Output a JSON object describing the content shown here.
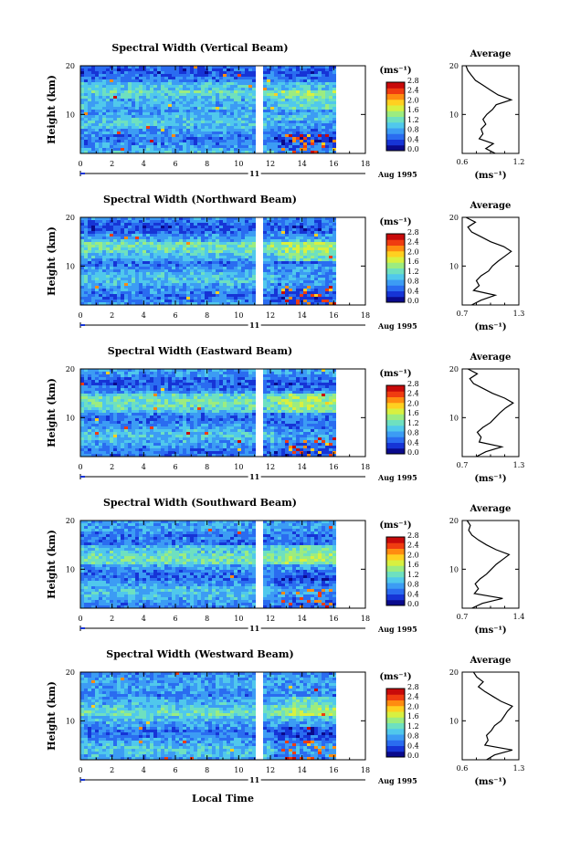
{
  "colors": {
    "colormap": [
      "#0a0a8c",
      "#1634d6",
      "#2a6cf0",
      "#3c9cf4",
      "#50c8ec",
      "#6ee0c0",
      "#9cec80",
      "#d8f040",
      "#ffd020",
      "#ff8c10",
      "#f03c10",
      "#c80a0a"
    ],
    "background": "#ffffff",
    "axis": "#000000",
    "gap": "#ffffff"
  },
  "footer": {
    "xlabel": "Local Time"
  },
  "chart_data": [
    {
      "type": "heatmap",
      "title": "Spectral Width (Vertical Beam)",
      "ylabel": "Height (km)",
      "ylim": [
        2,
        20
      ],
      "yticks": [
        "10",
        "20"
      ],
      "xlim": [
        0,
        18
      ],
      "xticks": [
        "0",
        "2",
        "4",
        "6",
        "8",
        "10",
        "12",
        "14",
        "16",
        "18"
      ],
      "date_label": "11",
      "date_suffix": "Aug 1995",
      "gap_hours": [
        11.1,
        11.5
      ],
      "data_end_hour": 16,
      "colorbar": {
        "unit": "(ms⁻¹)",
        "ticks": [
          "0.0",
          "0.4",
          "0.8",
          "1.2",
          "1.6",
          "2.0",
          "2.4",
          "2.8"
        ]
      },
      "profile": {
        "title": "Average",
        "xlabel": "(ms⁻¹)",
        "xlim": [
          0.6,
          1.2
        ],
        "xticks": [
          "0.6",
          "1.2"
        ],
        "yticks": [
          "10",
          "20"
        ],
        "heights": [
          2,
          3,
          4,
          5,
          6,
          7,
          8,
          9,
          10,
          11,
          12,
          13,
          14,
          15,
          16,
          17,
          18,
          19,
          20
        ],
        "values": [
          0.95,
          0.85,
          0.93,
          0.78,
          0.82,
          0.8,
          0.85,
          0.82,
          0.86,
          0.92,
          0.96,
          1.12,
          0.98,
          0.9,
          0.82,
          0.74,
          0.7,
          0.66,
          0.64
        ]
      }
    },
    {
      "type": "heatmap",
      "title": "Spectral Width (Northward Beam)",
      "ylabel": "Height (km)",
      "ylim": [
        2,
        20
      ],
      "yticks": [
        "10",
        "20"
      ],
      "xlim": [
        0,
        18
      ],
      "xticks": [
        "0",
        "2",
        "4",
        "6",
        "8",
        "10",
        "12",
        "14",
        "16",
        "18"
      ],
      "date_label": "11",
      "date_suffix": "Aug 1995",
      "gap_hours": [
        11.1,
        11.5
      ],
      "data_end_hour": 16,
      "colorbar": {
        "unit": "(ms⁻¹)",
        "ticks": [
          "0.0",
          "0.4",
          "0.8",
          "1.2",
          "1.6",
          "2.0",
          "2.4",
          "2.8"
        ]
      },
      "profile": {
        "title": "Average",
        "xlabel": "(ms⁻¹)",
        "xlim": [
          0.7,
          1.3
        ],
        "xticks": [
          "0.7",
          "1.3"
        ],
        "yticks": [
          "10",
          "20"
        ],
        "heights": [
          2,
          3,
          4,
          5,
          6,
          7,
          8,
          9,
          10,
          11,
          12,
          13,
          14,
          15,
          16,
          17,
          18,
          19,
          20
        ],
        "values": [
          0.8,
          0.9,
          1.05,
          0.82,
          0.88,
          0.85,
          0.9,
          0.98,
          1.02,
          1.08,
          1.15,
          1.22,
          1.14,
          1.0,
          0.9,
          0.8,
          0.76,
          0.84,
          0.74
        ]
      }
    },
    {
      "type": "heatmap",
      "title": "Spectral Width (Eastward Beam)",
      "ylabel": "Height (km)",
      "ylim": [
        2,
        20
      ],
      "yticks": [
        "10",
        "20"
      ],
      "xlim": [
        0,
        18
      ],
      "xticks": [
        "0",
        "2",
        "4",
        "6",
        "8",
        "10",
        "12",
        "14",
        "16",
        "18"
      ],
      "date_label": "11",
      "date_suffix": "Aug 1995",
      "gap_hours": [
        11.1,
        11.5
      ],
      "data_end_hour": 16,
      "colorbar": {
        "unit": "(ms⁻¹)",
        "ticks": [
          "0.0",
          "0.4",
          "0.8",
          "1.2",
          "1.6",
          "2.0",
          "2.4",
          "2.8"
        ]
      },
      "profile": {
        "title": "Average",
        "xlabel": "(ms⁻¹)",
        "xlim": [
          0.7,
          1.3
        ],
        "xticks": [
          "0.7",
          "1.3"
        ],
        "yticks": [
          "10",
          "20"
        ],
        "heights": [
          2,
          3,
          4,
          5,
          6,
          7,
          8,
          9,
          10,
          11,
          12,
          13,
          14,
          15,
          16,
          17,
          18,
          19,
          20
        ],
        "values": [
          0.85,
          0.95,
          1.12,
          0.88,
          0.9,
          0.86,
          0.92,
          1.0,
          1.05,
          1.1,
          1.16,
          1.24,
          1.15,
          1.02,
          0.92,
          0.82,
          0.78,
          0.86,
          0.76
        ]
      }
    },
    {
      "type": "heatmap",
      "title": "Spectral Width (Southward Beam)",
      "ylabel": "Height (km)",
      "ylim": [
        2,
        20
      ],
      "yticks": [
        "10",
        "20"
      ],
      "xlim": [
        0,
        18
      ],
      "xticks": [
        "0",
        "2",
        "4",
        "6",
        "8",
        "10",
        "12",
        "14",
        "16",
        "18"
      ],
      "date_label": "11",
      "date_suffix": "Aug 1995",
      "gap_hours": [
        11.1,
        11.5
      ],
      "data_end_hour": 16,
      "colorbar": {
        "unit": "(ms⁻¹)",
        "ticks": [
          "0.0",
          "0.4",
          "0.8",
          "1.2",
          "1.6",
          "2.0",
          "2.4",
          "2.8"
        ]
      },
      "profile": {
        "title": "Average",
        "xlabel": "(ms⁻¹)",
        "xlim": [
          0.7,
          1.4
        ],
        "xticks": [
          "0.7",
          "1.4"
        ],
        "yticks": [
          "10",
          "20"
        ],
        "heights": [
          2,
          3,
          4,
          5,
          6,
          7,
          8,
          9,
          10,
          11,
          12,
          13,
          14,
          15,
          16,
          17,
          18,
          19,
          20
        ],
        "values": [
          0.82,
          0.95,
          1.2,
          0.85,
          0.9,
          0.86,
          0.92,
          1.0,
          1.06,
          1.12,
          1.2,
          1.28,
          1.12,
          1.0,
          0.9,
          0.82,
          0.78,
          0.8,
          0.76
        ]
      }
    },
    {
      "type": "heatmap",
      "title": "Spectral Width (Westward Beam)",
      "ylabel": "Height (km)",
      "ylim": [
        2,
        20
      ],
      "yticks": [
        "10",
        "20"
      ],
      "xlim": [
        0,
        18
      ],
      "xticks": [
        "0",
        "2",
        "4",
        "6",
        "8",
        "10",
        "12",
        "14",
        "16",
        "18"
      ],
      "date_label": "11",
      "date_suffix": "Aug 1995",
      "gap_hours": [
        11.1,
        11.5
      ],
      "data_end_hour": 16,
      "colorbar": {
        "unit": "(ms⁻¹)",
        "ticks": [
          "0.0",
          "0.4",
          "0.8",
          "1.2",
          "1.6",
          "2.0",
          "2.4",
          "2.8"
        ]
      },
      "profile": {
        "title": "Average",
        "xlabel": "(ms⁻¹)",
        "xlim": [
          0.6,
          1.3
        ],
        "xticks": [
          "0.6",
          "1.3"
        ],
        "yticks": [
          "10",
          "20"
        ],
        "heights": [
          2,
          3,
          4,
          5,
          6,
          7,
          8,
          9,
          10,
          11,
          12,
          13,
          14,
          15,
          16,
          17,
          18,
          19,
          20
        ],
        "values": [
          0.9,
          1.0,
          1.22,
          0.88,
          0.92,
          0.9,
          0.96,
          1.0,
          1.08,
          1.12,
          1.16,
          1.22,
          1.08,
          0.98,
          0.88,
          0.8,
          0.86,
          0.78,
          0.74
        ]
      }
    }
  ]
}
